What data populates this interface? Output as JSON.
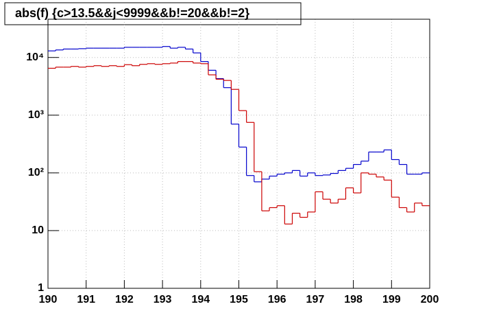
{
  "chart_data": {
    "type": "histogram",
    "title": "abs(f) {c>13.5&&j<9999&&b!=20&&b!=2}",
    "bins": [
      190,
      190.2,
      190.4,
      190.6,
      190.8,
      191,
      191.2,
      191.4,
      191.6,
      191.8,
      192,
      192.2,
      192.4,
      192.6,
      192.8,
      193,
      193.2,
      193.4,
      193.6,
      193.8,
      194,
      194.2,
      194.4,
      194.6,
      194.8,
      195,
      195.2,
      195.4,
      195.6,
      195.8,
      196,
      196.2,
      196.4,
      196.6,
      196.8,
      197,
      197.2,
      197.4,
      197.6,
      197.8,
      198,
      198.2,
      198.4,
      198.6,
      198.8,
      199,
      199.2,
      199.4,
      199.6,
      199.8,
      200
    ],
    "series": [
      {
        "color": "#0000cc",
        "values": [
          13000,
          13500,
          14000,
          14000,
          14200,
          14500,
          14500,
          14500,
          14500,
          14500,
          15000,
          15000,
          15000,
          15000,
          15000,
          15500,
          14500,
          15000,
          14000,
          12000,
          8500,
          6000,
          4300,
          3000,
          700,
          280,
          90,
          70,
          78,
          88,
          95,
          100,
          110,
          88,
          100,
          90,
          92,
          98,
          110,
          120,
          140,
          160,
          230,
          230,
          250,
          170,
          140,
          95,
          95,
          100
        ]
      },
      {
        "color": "#cc0000",
        "values": [
          6500,
          6800,
          6800,
          7000,
          6800,
          7000,
          7200,
          7000,
          7200,
          7000,
          7500,
          7200,
          7600,
          7800,
          7600,
          7800,
          8000,
          8500,
          8500,
          8000,
          7800,
          5000,
          4200,
          4000,
          2800,
          1200,
          750,
          105,
          22,
          25,
          27,
          13,
          20,
          17,
          21,
          47,
          35,
          30,
          35,
          55,
          45,
          100,
          95,
          85,
          75,
          38,
          25,
          21,
          30,
          27
        ]
      }
    ],
    "xlim": [
      190,
      200
    ],
    "xticks": [
      190,
      191,
      192,
      193,
      194,
      195,
      196,
      197,
      198,
      199,
      200
    ],
    "ylim": [
      1,
      46000
    ],
    "yticks": [
      1,
      10,
      {
        "value": 100,
        "label": "10²"
      },
      {
        "value": 1000,
        "label": "10³"
      },
      {
        "value": 10000,
        "label": "10⁴"
      }
    ],
    "log_y": true,
    "grid": true
  }
}
